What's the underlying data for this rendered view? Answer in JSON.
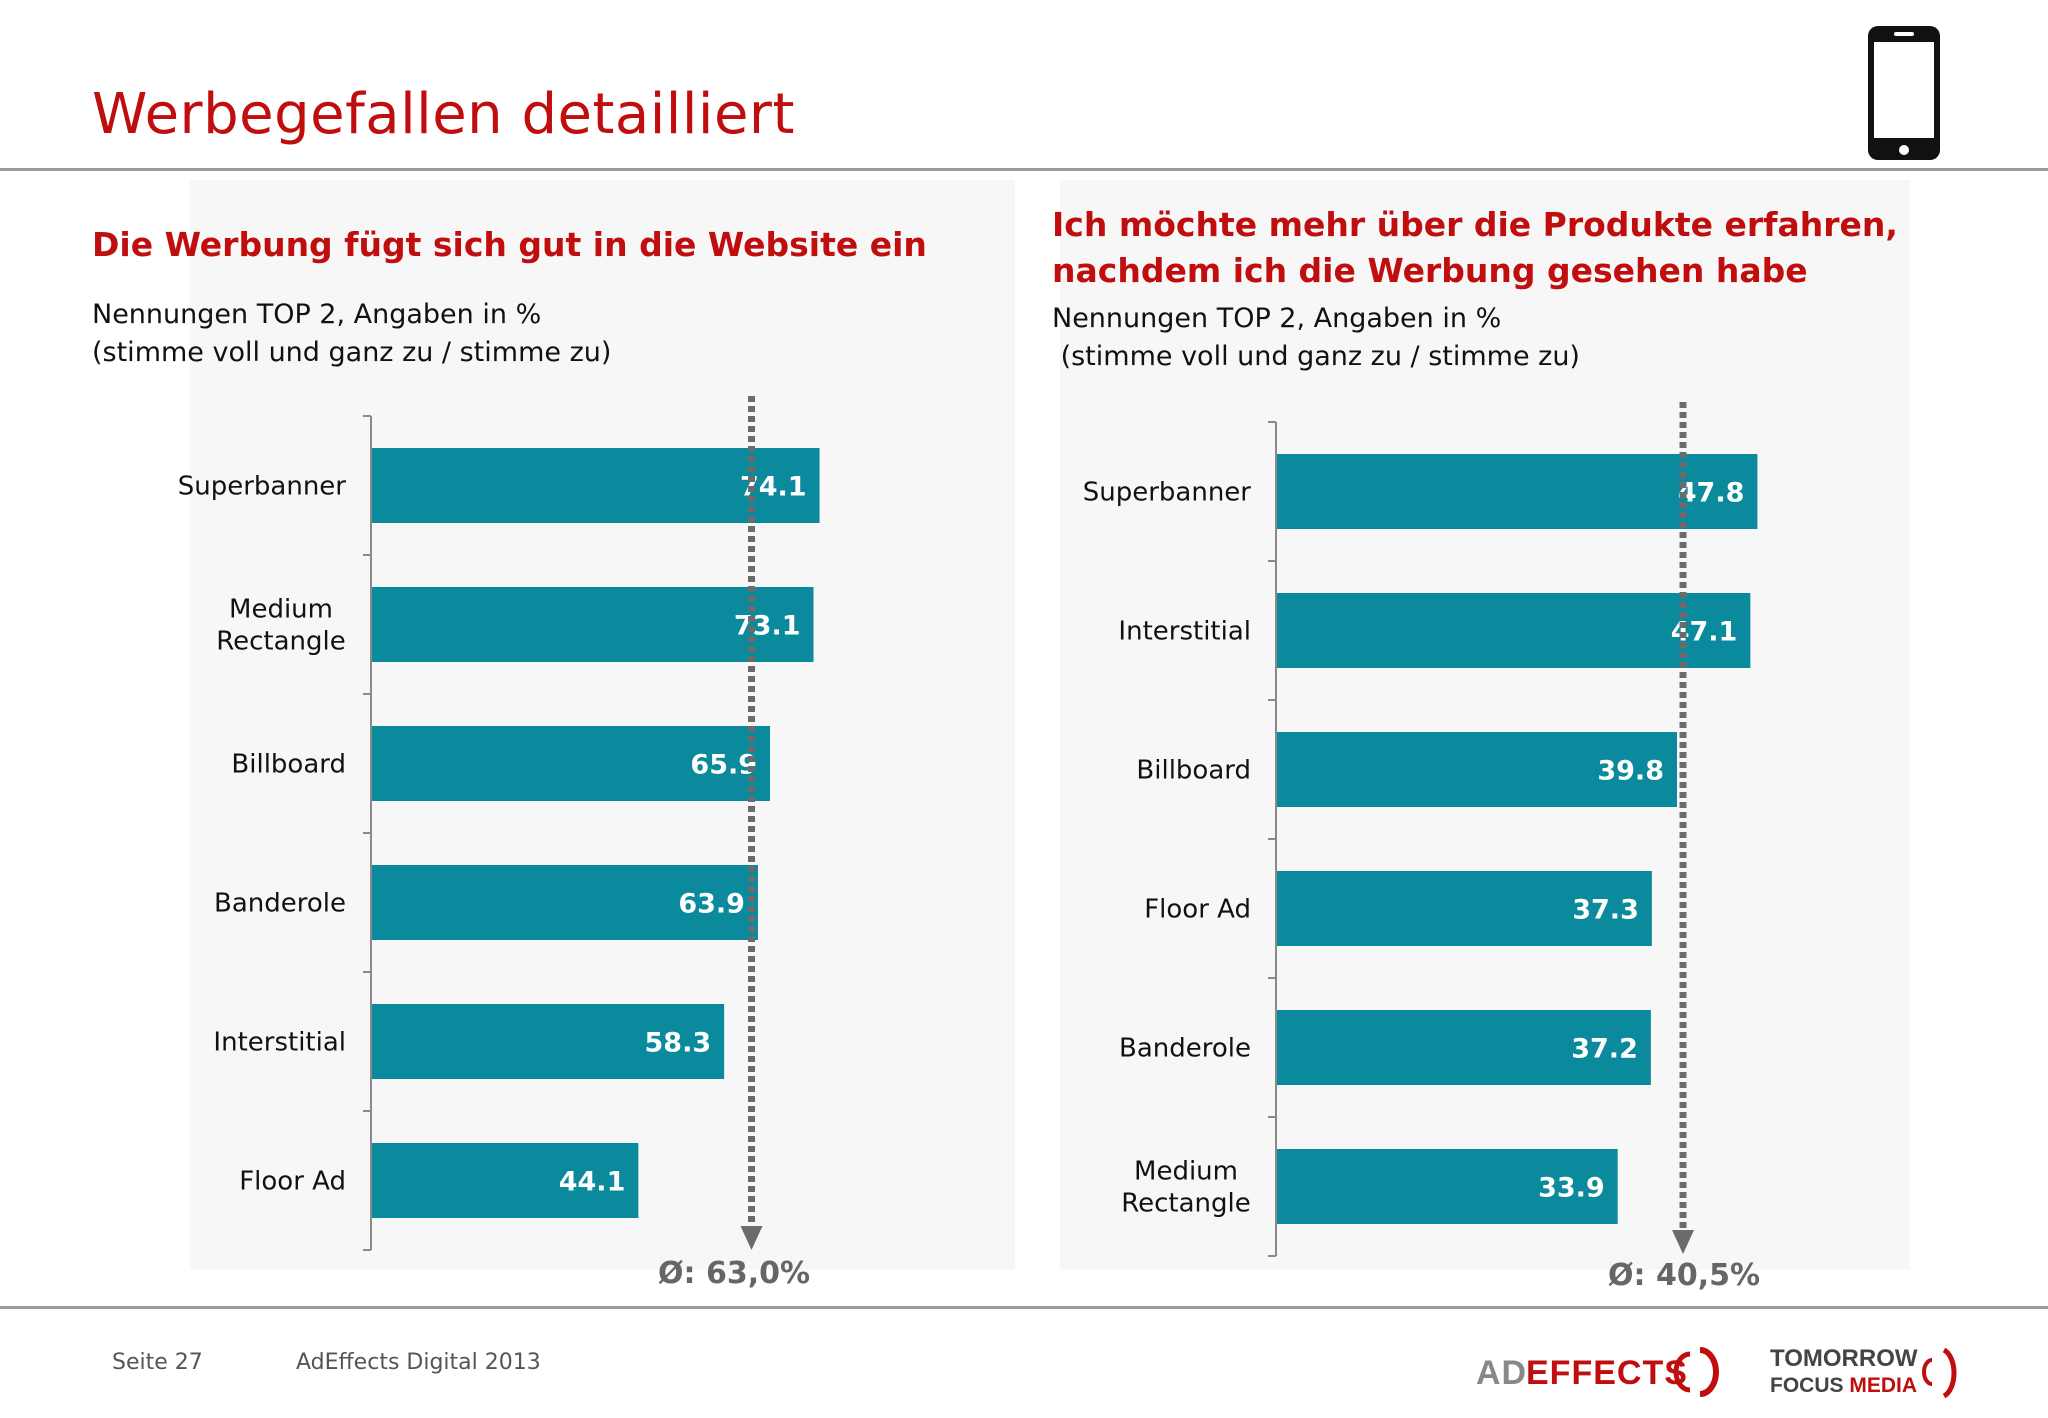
{
  "page": {
    "title": "Werbegefallen detailliert"
  },
  "left_panel": {
    "headline": "Die Werbung fügt sich gut in die Website ein",
    "subtitle_line1": "Nennungen TOP 2, Angaben in %",
    "subtitle_line2": "(stimme voll und ganz zu / stimme zu)",
    "average_label": "Ø: 63,0%"
  },
  "right_panel": {
    "headline_line1": "Ich möchte mehr über die Produkte erfahren,",
    "headline_line2": "nachdem ich die Werbung gesehen habe",
    "subtitle_line1": "Nennungen TOP 2, Angaben in %",
    "subtitle_line2": " (stimme voll und ganz zu / stimme zu)",
    "average_label": "Ø: 40,5%"
  },
  "footer": {
    "page_number": "Seite 27",
    "source": "AdEffects Digital 2013",
    "logo_adeffects": "ADEFFECTS",
    "logo_tomorrow_line1": "TOMORROW",
    "logo_tomorrow_line2": "FOCUS MEDIA"
  },
  "colors": {
    "bar": "#0a8a9c",
    "accent_red": "#c00d0d",
    "average_line": "#6b6b6b"
  },
  "chart_data": [
    {
      "type": "bar",
      "orientation": "horizontal",
      "categories": [
        "Superbanner",
        "Medium Rectangle",
        "Billboard",
        "Banderole",
        "Interstitial",
        "Floor Ad"
      ],
      "category_lines": [
        [
          "Superbanner"
        ],
        [
          "Medium",
          "Rectangle"
        ],
        [
          "Billboard"
        ],
        [
          "Banderole"
        ],
        [
          "Interstitial"
        ],
        [
          "Floor Ad"
        ]
      ],
      "values": [
        74.1,
        73.1,
        65.9,
        63.9,
        58.3,
        44.1
      ],
      "data_labels": [
        "74.1",
        "73.1",
        "65.9",
        "63.9",
        "58.3",
        "44.1"
      ],
      "average": 63.0,
      "xlim": [
        0,
        100
      ],
      "grid": false,
      "legend": "none"
    },
    {
      "type": "bar",
      "orientation": "horizontal",
      "categories": [
        "Superbanner",
        "Interstitial",
        "Billboard",
        "Floor Ad",
        "Banderole",
        "Medium Rectangle"
      ],
      "category_lines": [
        [
          "Superbanner"
        ],
        [
          "Interstitial"
        ],
        [
          "Billboard"
        ],
        [
          "Floor Ad"
        ],
        [
          "Banderole"
        ],
        [
          "Medium",
          "Rectangle"
        ]
      ],
      "values": [
        47.8,
        47.1,
        39.8,
        37.3,
        37.2,
        33.9
      ],
      "data_labels": [
        "47.8",
        "47.1",
        "39.8",
        "37.3",
        "37.2",
        "33.9"
      ],
      "average": 40.5,
      "xlim": [
        0,
        65
      ],
      "grid": false,
      "legend": "none"
    }
  ]
}
